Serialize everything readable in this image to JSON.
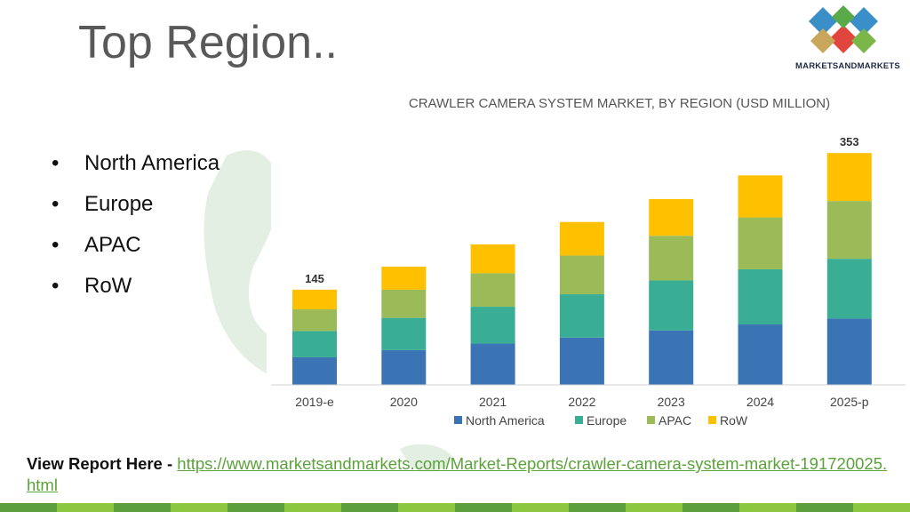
{
  "page": {
    "title": "Top Region..",
    "bullets": [
      "North America",
      "Europe",
      "APAC",
      "RoW"
    ],
    "bullet_symbol": "•"
  },
  "logo": {
    "text": "MARKETSANDMARKETS",
    "colors": [
      "#3a8fc9",
      "#e1463e",
      "#7ab648",
      "#c8a65a"
    ]
  },
  "footer": {
    "label": "View Report Here - ",
    "link": "https://www.marketsandmarkets.com/Market-Reports/crawler-camera-system-market-191720025.html",
    "bar_colors": [
      "#5c9f3c",
      "#8dc63f"
    ]
  },
  "chart_data": {
    "type": "bar",
    "stacked": true,
    "title": "CRAWLER CAMERA SYSTEM MARKET, BY REGION (USD MILLION)",
    "categories": [
      "2019-e",
      "2020",
      "2021",
      "2022",
      "2023",
      "2024",
      "2025-p"
    ],
    "series": [
      {
        "name": "North America",
        "color": "#3a74b4",
        "values": [
          42,
          53,
          63,
          72,
          83,
          92,
          101
        ]
      },
      {
        "name": "Europe",
        "color": "#3aae94",
        "values": [
          40,
          49,
          56,
          66,
          76,
          84,
          91
        ]
      },
      {
        "name": "APAC",
        "color": "#9bbb59",
        "values": [
          33,
          43,
          51,
          59,
          68,
          79,
          88
        ]
      },
      {
        "name": "RoW",
        "color": "#ffc000",
        "values": [
          30,
          35,
          44,
          51,
          56,
          64,
          73
        ]
      }
    ],
    "totals": [
      "145",
      "",
      "",
      "",
      "",
      "",
      "353"
    ],
    "ylim": [
      0,
      360
    ],
    "legend": "bottom",
    "grid": false
  }
}
